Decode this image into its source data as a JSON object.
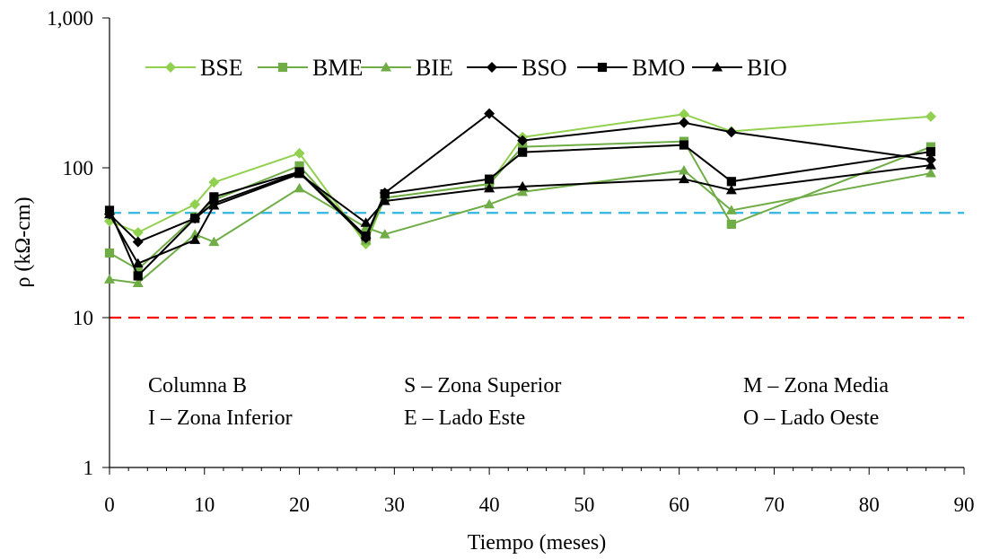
{
  "chart_data": {
    "type": "line",
    "title": "",
    "xlabel": "Tiempo (meses)",
    "ylabel": "ρ (kΩ-cm)",
    "xlim": [
      0,
      90
    ],
    "ylim": [
      1,
      1000
    ],
    "y_scale": "log",
    "grid": false,
    "legend_position": "top",
    "x_ticks": [
      "0",
      "10",
      "20",
      "30",
      "40",
      "50",
      "60",
      "70",
      "80",
      "90"
    ],
    "y_ticks": [
      "1",
      "10",
      "100",
      "1,000"
    ],
    "series": [
      {
        "name": "BSE",
        "color": "#92d050",
        "marker": "diamond",
        "points": [
          [
            0,
            44
          ],
          [
            3,
            37
          ],
          [
            9,
            57
          ],
          [
            11,
            80
          ],
          [
            20,
            125
          ],
          [
            27,
            31
          ],
          [
            29,
            63
          ],
          [
            40,
            78
          ],
          [
            43.5,
            160
          ],
          [
            60.5,
            228
          ],
          [
            65.5,
            175
          ],
          [
            86.5,
            220
          ]
        ]
      },
      {
        "name": "BME",
        "color": "#70ad47",
        "marker": "square",
        "points": [
          [
            0,
            27
          ],
          [
            3,
            21
          ],
          [
            9,
            47
          ],
          [
            11,
            61
          ],
          [
            20,
            103
          ],
          [
            27,
            33
          ],
          [
            29,
            63
          ],
          [
            40,
            78
          ],
          [
            43.5,
            138
          ],
          [
            60.5,
            150
          ],
          [
            65.5,
            42
          ],
          [
            86.5,
            138
          ]
        ]
      },
      {
        "name": "BIE",
        "color": "#70ad47",
        "marker": "triangle",
        "points": [
          [
            0,
            18
          ],
          [
            3,
            17
          ],
          [
            9,
            36
          ],
          [
            11,
            32
          ],
          [
            20,
            73
          ],
          [
            27,
            40
          ],
          [
            29,
            36
          ],
          [
            40,
            57
          ],
          [
            43.5,
            69
          ],
          [
            60.5,
            96
          ],
          [
            65.5,
            52
          ],
          [
            86.5,
            92
          ]
        ]
      },
      {
        "name": "BSO",
        "color": "#000000",
        "marker": "diamond",
        "points": [
          [
            0,
            49
          ],
          [
            3,
            32
          ],
          [
            9,
            46
          ],
          [
            11,
            58
          ],
          [
            20,
            93
          ],
          [
            27,
            34
          ],
          [
            29,
            68
          ],
          [
            40,
            230
          ],
          [
            43.5,
            152
          ],
          [
            60.5,
            200
          ],
          [
            65.5,
            173
          ],
          [
            86.5,
            113
          ]
        ]
      },
      {
        "name": "BMO",
        "color": "#000000",
        "marker": "square",
        "points": [
          [
            0,
            52
          ],
          [
            3,
            19
          ],
          [
            9,
            46
          ],
          [
            11,
            64
          ],
          [
            20,
            94
          ],
          [
            27,
            35
          ],
          [
            29,
            67
          ],
          [
            40,
            84
          ],
          [
            43.5,
            127
          ],
          [
            60.5,
            142
          ],
          [
            65.5,
            81
          ],
          [
            86.5,
            128
          ]
        ]
      },
      {
        "name": "BIO",
        "color": "#000000",
        "marker": "triangle",
        "points": [
          [
            0,
            49
          ],
          [
            3,
            23
          ],
          [
            9,
            33
          ],
          [
            11,
            56
          ],
          [
            20,
            91
          ],
          [
            27,
            43
          ],
          [
            29,
            60
          ],
          [
            40,
            73
          ],
          [
            43.5,
            75
          ],
          [
            60.5,
            84
          ],
          [
            65.5,
            71
          ],
          [
            86.5,
            104
          ]
        ]
      }
    ],
    "reference_lines": [
      {
        "y": 50,
        "color": "#2fb5e0",
        "style": "dashed"
      },
      {
        "y": 10,
        "color": "#ff0000",
        "style": "dashed"
      }
    ],
    "annotations": [
      "Columna B",
      "S – Zona Superior",
      "M – Zona Media",
      "I – Zona Inferior",
      "E – Lado Este",
      "O – Lado Oeste"
    ]
  }
}
